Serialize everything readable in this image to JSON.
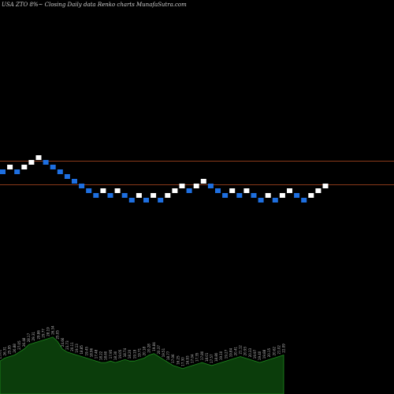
{
  "header": {
    "title": "USA ZTO 8%~  Closing Daily data  Renko  charts MunafaSutra.com"
  },
  "colors": {
    "background": "#000000",
    "up_brick": "#ffffff",
    "down_brick": "#1e6fe0",
    "level_line": "#8b3a1a",
    "volume_fill": "#0b3d0b",
    "volume_line": "#1e8a1e"
  },
  "chart_data": {
    "type": "renko",
    "grid": false,
    "brick_directions": [
      "down",
      "up",
      "down",
      "up",
      "up",
      "up",
      "down",
      "down",
      "down",
      "down",
      "down",
      "down",
      "down",
      "down",
      "up",
      "down",
      "up",
      "down",
      "down",
      "up",
      "down",
      "up",
      "down",
      "up",
      "up",
      "up",
      "down",
      "up",
      "up",
      "down",
      "down",
      "down",
      "up",
      "down",
      "up",
      "down",
      "down",
      "up",
      "down",
      "up",
      "up",
      "down",
      "down",
      "up",
      "up",
      "up"
    ],
    "level_lines": [
      "upper",
      "lower"
    ],
    "volume": {
      "values": [
        22,
        24,
        25,
        26,
        28,
        30,
        33,
        34,
        35,
        36,
        37,
        38,
        35,
        30,
        28,
        27,
        26,
        25,
        24,
        23,
        22,
        21,
        21,
        22,
        21,
        22,
        23,
        22,
        22,
        23,
        24,
        26,
        27,
        25,
        23,
        21,
        19,
        18,
        17,
        18,
        19,
        20,
        21,
        20,
        19,
        20,
        21,
        22,
        23,
        24,
        25,
        24,
        23,
        22,
        21,
        22,
        23,
        24,
        25,
        26
      ],
      "labels": [
        "25.01",
        "26.31",
        "25.95",
        "26.88",
        "27.05",
        "26.48",
        "28.17",
        "29.31",
        "29.86",
        "29.77",
        "28.19",
        "26.34",
        "25.05",
        "24.66",
        "23.73",
        "20.11",
        "19.13",
        "18.85",
        "19.45",
        "18.96",
        "17.48",
        "18.22",
        "18.60",
        "17.95",
        "18.30",
        "19.05",
        "18.74",
        "18.20",
        "19.19",
        "19.71",
        "20.18",
        "20.28",
        "19.84",
        "20.37",
        "19.51",
        "18.77",
        "17.06",
        "16.25",
        "17.30",
        "16.93",
        "17.04",
        "17.35",
        "17.80",
        "18.01",
        "17.57",
        "18.80",
        "19.10",
        "19.27",
        "19.84",
        "20.41",
        "21.12",
        "20.93",
        "20.33",
        "19.97",
        "19.40",
        "19.88",
        "20.15",
        "20.62",
        "21.02",
        "22.09"
      ]
    }
  }
}
